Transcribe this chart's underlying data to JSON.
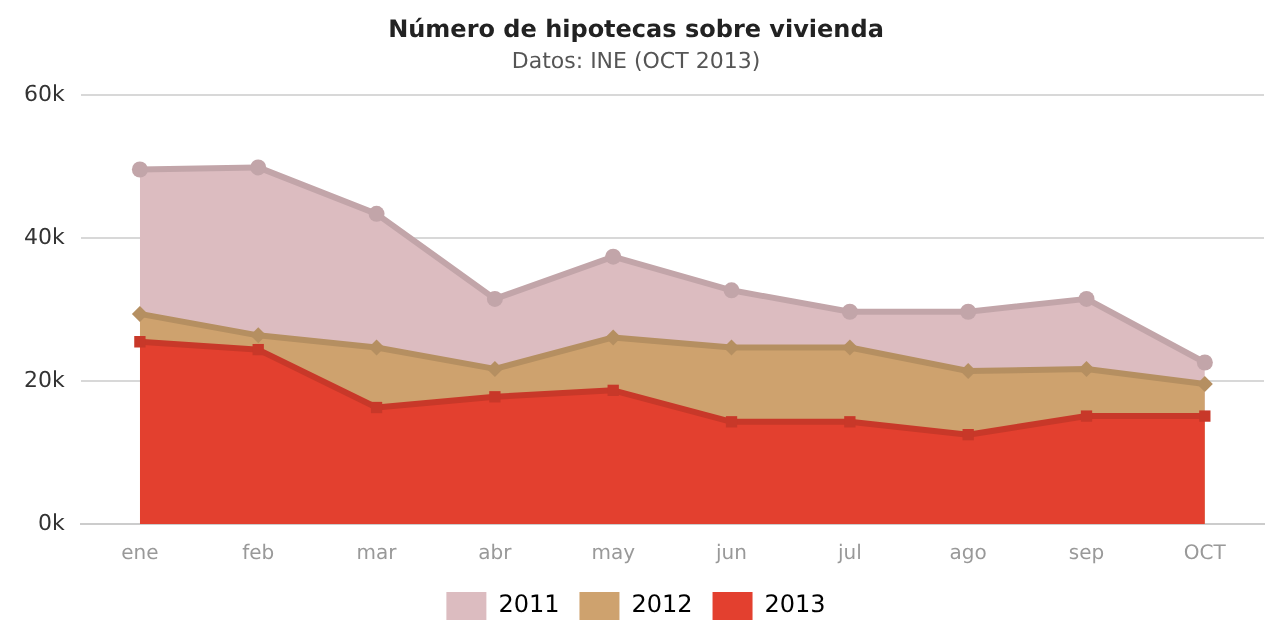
{
  "chart_data": {
    "type": "area",
    "title": "Número de hipotecas sobre vivienda",
    "subtitle": "Datos: INE (OCT 2013)",
    "categories": [
      "ene",
      "feb",
      "mar",
      "abr",
      "may",
      "jun",
      "jul",
      "ago",
      "sep",
      "OCT"
    ],
    "series": [
      {
        "name": "2011",
        "color": "#dcbcc0",
        "marker": "circle",
        "values": [
          49.6,
          49.9,
          43.4,
          31.5,
          37.4,
          32.7,
          29.7,
          29.7,
          31.5,
          22.6
        ]
      },
      {
        "name": "2012",
        "color": "#cea26e",
        "marker": "diamond",
        "values": [
          29.4,
          26.4,
          24.7,
          21.7,
          26.1,
          24.7,
          24.7,
          21.4,
          21.7,
          19.6
        ]
      },
      {
        "name": "2013",
        "color": "#e3402f",
        "marker": "square",
        "values": [
          25.5,
          24.4,
          16.3,
          17.8,
          18.7,
          14.3,
          14.3,
          12.5,
          15.1,
          15.1
        ]
      }
    ],
    "ylim": [
      0,
      60
    ],
    "yticks": [
      {
        "value": 0,
        "label": "0k"
      },
      {
        "value": 20,
        "label": "20k"
      },
      {
        "value": 40,
        "label": "40k"
      },
      {
        "value": 60,
        "label": "60k"
      }
    ],
    "grid": "y",
    "legend": "bottom"
  }
}
